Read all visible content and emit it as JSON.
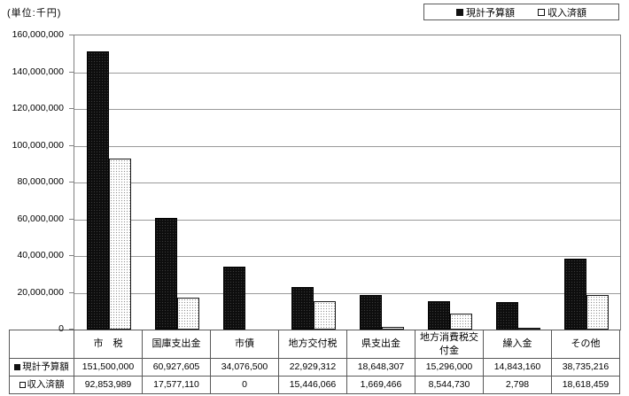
{
  "header": {
    "unit_label": "(単位:千円)"
  },
  "legend": {
    "items": [
      {
        "label": "現計予算額",
        "swatch": "solid-black"
      },
      {
        "label": "収入済額",
        "swatch": "dotted-white"
      }
    ]
  },
  "chart_data": {
    "type": "bar",
    "title": "",
    "unit_label": "(単位:千円)",
    "categories": [
      "市　税",
      "国庫支出金",
      "市債",
      "地方交付税",
      "県支出金",
      "地方消費税交付金",
      "繰入金",
      "その他"
    ],
    "series": [
      {
        "name": "現計予算額",
        "style": "solid-black",
        "values": [
          151500000,
          60927605,
          34076500,
          22929312,
          18648307,
          15296000,
          14843160,
          38735216
        ]
      },
      {
        "name": "収入済額",
        "style": "dotted-white",
        "values": [
          92853989,
          17577110,
          0,
          15446066,
          1669466,
          8544730,
          2798,
          18618459
        ]
      }
    ],
    "ylim": [
      0,
      160000000
    ],
    "y_tick_step": 20000000,
    "y_tick_labels": [
      "160,000,000",
      "140,000,000",
      "120,000,000",
      "100,000,000",
      "80,000,000",
      "60,000,000",
      "40,000,000",
      "20,000,000",
      "0"
    ],
    "grid": true,
    "legend_position": "top-right"
  },
  "table": {
    "columns": [
      "市　税",
      "国庫支出金",
      "市債",
      "地方交付税",
      "県支出金",
      "地方消費税交付金",
      "繰入金",
      "その他"
    ],
    "rows": [
      {
        "label": "現計予算額",
        "swatch": "solid-black",
        "cells": [
          "151,500,000",
          "60,927,605",
          "34,076,500",
          "22,929,312",
          "18,648,307",
          "15,296,000",
          "14,843,160",
          "38,735,216"
        ]
      },
      {
        "label": "収入済額",
        "swatch": "dotted-white",
        "cells": [
          "92,853,989",
          "17,577,110",
          "0",
          "15,446,066",
          "1,669,466",
          "8,544,730",
          "2,798",
          "18,618,459"
        ]
      }
    ]
  },
  "colors": {
    "bar_solid": "#0d0d0d",
    "bar_dotted_bg": "#ffffff",
    "bar_dotted_dot": "#8f8f8f",
    "gridline": "#9a9a9a",
    "plot_border": "#808080",
    "table_border": "#595959",
    "text": "#000000"
  }
}
